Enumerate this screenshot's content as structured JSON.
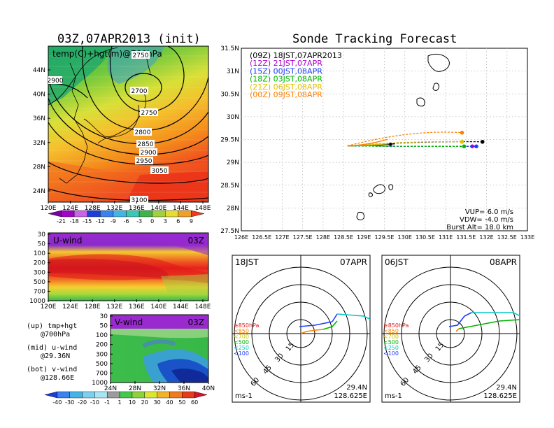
{
  "chart_data": [
    {
      "type": "heatmap",
      "title": "03Z,07APR2013 (init)",
      "label": "temp(C)+hgt(m)@700hPa",
      "x_ticks": [
        "120E",
        "124E",
        "128E",
        "132E",
        "136E",
        "140E",
        "144E",
        "148E"
      ],
      "y_ticks": [
        "44N",
        "40N",
        "36N",
        "32N",
        "28N",
        "24N"
      ],
      "contour_labels": [
        "2750",
        "2700",
        "2750",
        "2800",
        "2850",
        "2900",
        "2950",
        "3050",
        "3100",
        "2900"
      ],
      "colorbar_ticks": [
        "-21",
        "-18",
        "-15",
        "-12",
        "-9",
        "-6",
        "-3",
        "0",
        "3",
        "6",
        "9"
      ]
    },
    {
      "type": "heatmap",
      "label": "U-wind",
      "time_label": "03Z",
      "x_ticks": [
        "120E",
        "124E",
        "128E",
        "132E",
        "136E",
        "140E",
        "144E",
        "148E"
      ],
      "y_ticks": [
        "30",
        "50",
        "100",
        "200",
        "300",
        "500",
        "700",
        "1000"
      ]
    },
    {
      "type": "heatmap",
      "label": "V-wind",
      "time_label": "03Z",
      "x_ticks": [
        "24N",
        "28N",
        "32N",
        "36N",
        "40N"
      ],
      "y_ticks": [
        "30",
        "50",
        "100",
        "200",
        "300",
        "500",
        "700",
        "1000"
      ],
      "colorbar_ticks": [
        "-40",
        "-30",
        "-20",
        "-10",
        "-1",
        "1",
        "10",
        "20",
        "30",
        "40",
        "50",
        "60"
      ]
    },
    {
      "type": "line",
      "title": "Sonde Tracking Forecast",
      "x_ticks": [
        "126E",
        "126.5E",
        "127E",
        "127.5E",
        "128E",
        "128.5E",
        "129E",
        "129.5E",
        "130E",
        "130.5E",
        "131E",
        "131.5E",
        "132E",
        "132.5E",
        "133E"
      ],
      "y_ticks": [
        "31.5N",
        "31N",
        "30.5N",
        "30N",
        "29.5N",
        "29N",
        "28.5N",
        "28N",
        "27.5N"
      ],
      "xlim": [
        126,
        133
      ],
      "ylim": [
        27.5,
        31.5
      ],
      "series": [
        {
          "name": "(09Z) 18JST,07APR2013",
          "color": "#000000",
          "end": [
            131.9,
            29.45
          ]
        },
        {
          "name": "(12Z) 21JST,07APR",
          "color": "#b000d0",
          "end": [
            131.65,
            29.35
          ]
        },
        {
          "name": "(15Z) 00JST,08APR",
          "color": "#1e3cff",
          "end": [
            131.75,
            29.35
          ]
        },
        {
          "name": "(18Z) 03JST,08APR",
          "color": "#00b400",
          "end": [
            131.45,
            29.35
          ]
        },
        {
          "name": "(21Z) 06JST,08APR",
          "color": "#e0c000",
          "end": [
            131.4,
            29.45
          ]
        },
        {
          "name": "(00Z) 09JST,08APR",
          "color": "#ff8000",
          "end": [
            131.4,
            29.65
          ]
        }
      ],
      "launch": [
        128.6,
        29.36
      ],
      "annotations": [
        "VUP= 6.0 m/s",
        "VDW= -4.0 m/s",
        "Burst Alt= 18.0 km"
      ]
    },
    {
      "type": "line",
      "label": "hodograph",
      "left_label": "18JST",
      "right_label": "07APR",
      "ring_labels": [
        "15",
        "30",
        "45",
        "60"
      ],
      "pressure_legend": [
        "≥850hPa",
        "<850",
        "<700",
        "<500",
        "<250",
        "<100"
      ],
      "units": "ms-1",
      "location": [
        "29.4N",
        "128.625E"
      ]
    },
    {
      "type": "line",
      "label": "hodograph",
      "left_label": "06JST",
      "right_label": "08APR",
      "ring_labels": [
        "15",
        "30",
        "45",
        "60"
      ],
      "pressure_legend": [
        "≥850hPa",
        "<850",
        "<700",
        "<500",
        "<250",
        "<100"
      ],
      "units": "ms-1",
      "location": [
        "29.4N",
        "128.625E"
      ]
    }
  ],
  "notes": {
    "up": "(up) tmp+hgt",
    "up2": "@700hPa",
    "mid": "(mid) u-wind",
    "mid2": "@29.36N",
    "bot": "(bot) v-wind",
    "bot2": "@128.66E"
  }
}
